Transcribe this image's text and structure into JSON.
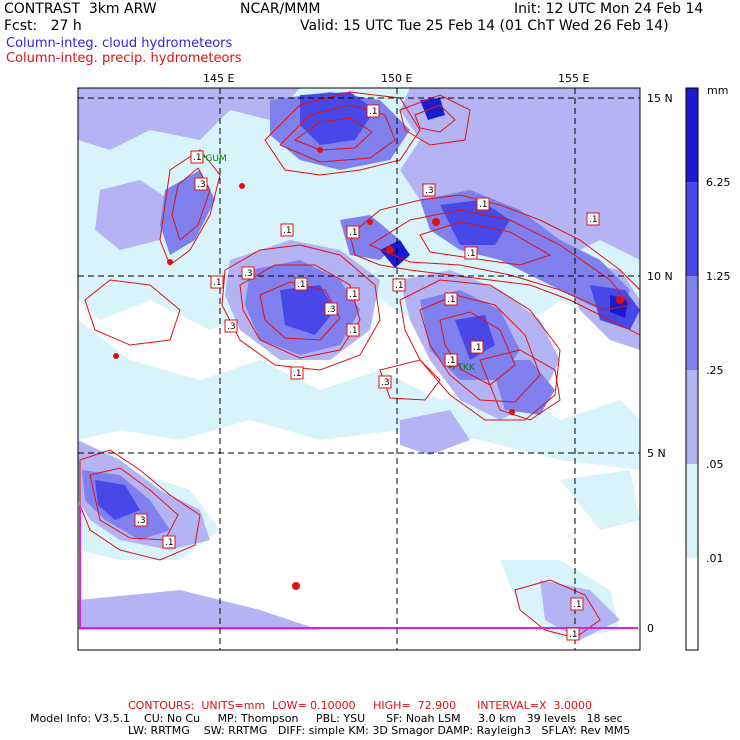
{
  "header": {
    "model": "CONTRAST  3km ARW",
    "center": "NCAR/MMM",
    "init": "Init: 12 UTC Mon 24 Feb 14",
    "fcst": "Fcst:   27 h",
    "valid": "Valid: 15 UTC Tue 25 Feb 14 (01 ChT Wed 26 Feb 14)"
  },
  "legend": {
    "cloud": "Column-integ. cloud hydrometeors",
    "precip": "Column-integ. precip. hydrometeors",
    "cloud_color": "#2a2ad8",
    "precip_color": "#e01010"
  },
  "axes": {
    "lon_labels": [
      "145 E",
      "150 E",
      "155 E"
    ],
    "lat_labels": [
      "15 N",
      "10 N",
      "5 N",
      "0"
    ]
  },
  "colorbar": {
    "unit": "mm",
    "levels": [
      "6.25",
      "1.25",
      ".25",
      ".05",
      ".01"
    ],
    "colors": [
      "#1a1ad0",
      "#4848e8",
      "#8080ee",
      "#b4b4f4",
      "#d8f4fa",
      "#ffffff"
    ]
  },
  "stations": [
    {
      "id": "PGUM"
    },
    {
      "id": "PTKK"
    }
  ],
  "contour_labels": [
    ".1",
    ".3",
    ".1",
    ".3",
    ".1",
    ".1",
    ".1",
    ".1",
    ".3",
    ".1",
    ".1",
    ".1",
    ".3",
    ".3",
    ".1",
    ".1",
    ".1",
    ".1",
    ".3",
    ".1",
    ".1",
    ".1",
    ".3",
    ".1",
    ".1",
    ".1"
  ],
  "footer": {
    "contours": "CONTOURS:  UNITS=mm  LOW= 0.10000     HIGH=  72.900      INTERVAL=X  3.0000",
    "line1": "Model Info: V3.5.1    CU: No Cu     MP: Thompson     PBL: YSU      SF: Noah LSM     3.0 km   39 levels   18 sec",
    "line2": "LW: RRTMG    SW: RRTMG   DIFF: simple KM: 3D Smagor DAMP: Rayleigh3   SFLAY: Rev MM5",
    "contours_color": "#e01010"
  }
}
